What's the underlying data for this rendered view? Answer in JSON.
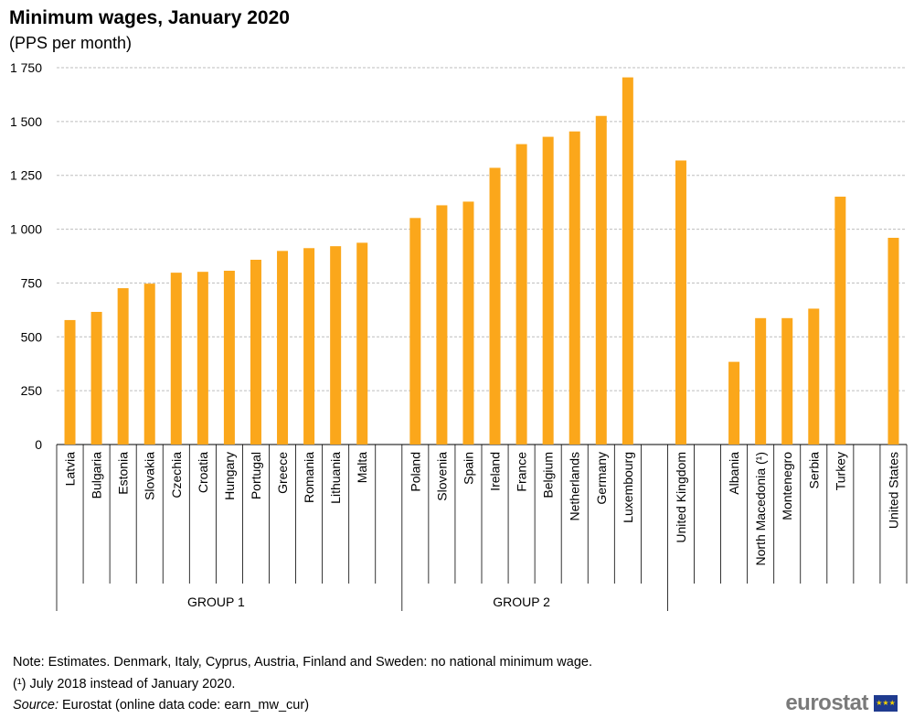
{
  "chart_data": {
    "type": "bar",
    "title": "Minimum wages, January 2020",
    "subtitle": "(PPS per month)",
    "ylim": [
      0,
      1750
    ],
    "yticks": [
      0,
      250,
      500,
      750,
      1000,
      1250,
      1500,
      1750
    ],
    "ytick_labels": [
      "0",
      "250",
      "500",
      "750",
      "1 000",
      "1 250",
      "1 500",
      "1 750"
    ],
    "grid": true,
    "color": "#FBA71B",
    "groups": [
      {
        "label": "GROUP 1",
        "categories": [
          "Latvia",
          "Bulgaria",
          "Estonia",
          "Slovakia",
          "Czechia",
          "Croatia",
          "Hungary",
          "Portugal",
          "Greece",
          "Romania",
          "Lithuania",
          "Malta"
        ],
        "values": [
          578,
          616,
          726,
          747,
          798,
          802,
          807,
          858,
          899,
          912,
          921,
          937
        ]
      },
      {
        "label": "GROUP 2",
        "categories": [
          "Poland",
          "Slovenia",
          "Spain",
          "Ireland",
          "France",
          "Belgium",
          "Netherlands",
          "Germany",
          "Luxembourg"
        ],
        "values": [
          1052,
          1111,
          1128,
          1285,
          1395,
          1429,
          1454,
          1526,
          1705
        ]
      },
      {
        "label": "",
        "categories": [
          "United Kingdom"
        ],
        "values": [
          1319
        ]
      },
      {
        "label": "",
        "categories": [
          "Albania",
          "North Macedonia (¹)",
          "Montenegro",
          "Serbia",
          "Turkey"
        ],
        "values": [
          384,
          587,
          587,
          631,
          1151
        ]
      },
      {
        "label": "",
        "categories": [
          "United States"
        ],
        "values": [
          960
        ]
      }
    ]
  },
  "notes": {
    "note": "Note: Estimates. Denmark, Italy,  Cyprus, Austria, Finland and Sweden: no national minimum wage.",
    "footnote": "(¹) July 2018 instead of January  2020.",
    "source_label": "Source:",
    "source": " Eurostat (online data code: earn_mw_cur)"
  },
  "logo": {
    "text": "eurostat",
    "flag": "★★★"
  }
}
